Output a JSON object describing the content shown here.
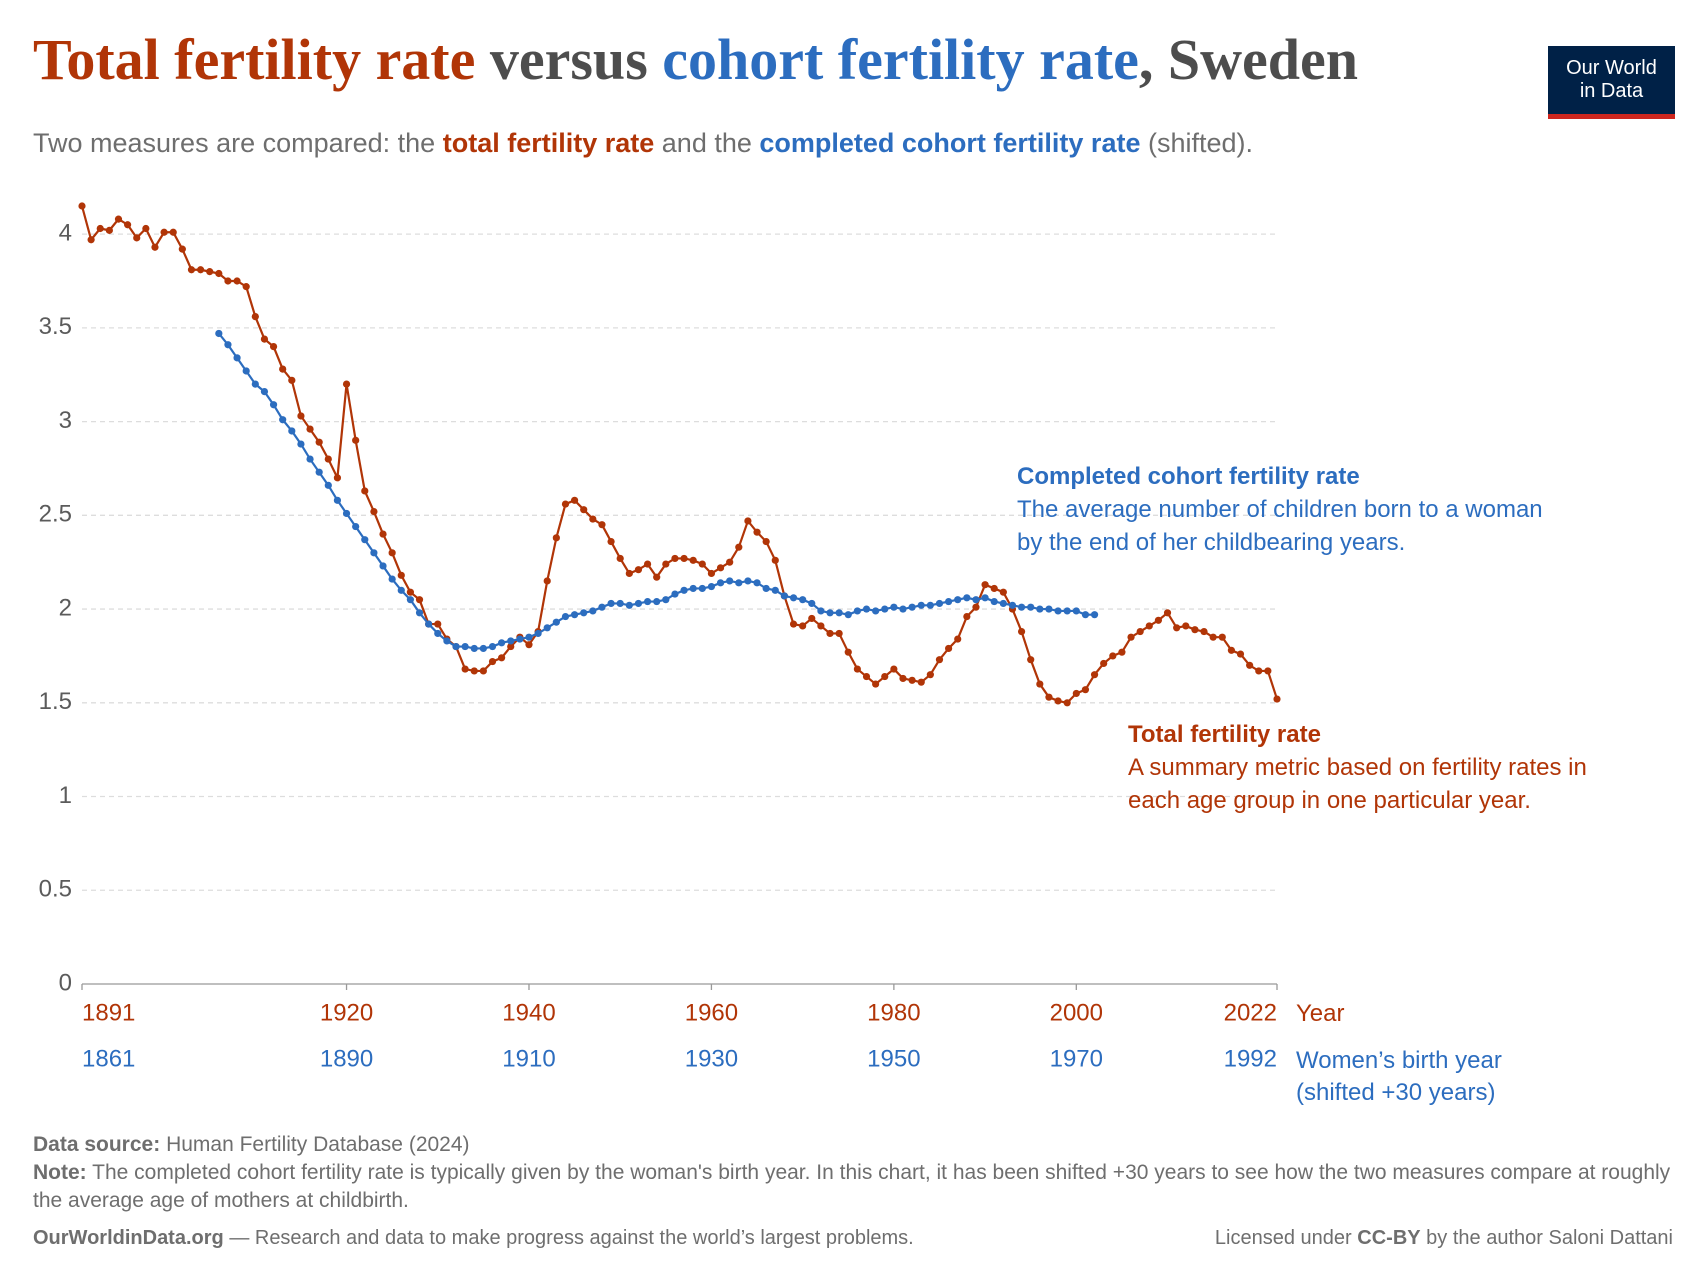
{
  "chart_data": {
    "type": "line",
    "title_parts": [
      {
        "text": "Total fertility rate",
        "color": "#b13507"
      },
      {
        "text": "versus",
        "color": "#4d4d4d"
      },
      {
        "text": "cohort fertility rate",
        "color": "#2c6dbf"
      },
      {
        "text": ", Sweden",
        "color": "#4d4d4d"
      }
    ],
    "subtitle_parts": [
      {
        "text": "Two measures are compared: the",
        "color": "#6e6e6e",
        "bold": false
      },
      {
        "text": "total fertility rate",
        "color": "#b13507",
        "bold": true
      },
      {
        "text": "and the",
        "color": "#6e6e6e",
        "bold": false
      },
      {
        "text": "completed cohort fertility rate",
        "color": "#2c6dbf",
        "bold": true
      },
      {
        "text": "(shifted).",
        "color": "#6e6e6e",
        "bold": false
      }
    ],
    "logo": [
      "Our World",
      "in Data"
    ],
    "xlabel": "Year",
    "x2label": "Women’s birth year (shifted +30 years)",
    "xlim": [
      1891,
      2022
    ],
    "xticks": [
      1891,
      1920,
      1940,
      1960,
      1980,
      2000,
      2022
    ],
    "x2lim": [
      1861,
      1992
    ],
    "x2ticks": [
      1861,
      1890,
      1910,
      1930,
      1950,
      1970,
      1992
    ],
    "ylim": [
      0,
      4.15
    ],
    "yticks": [
      0,
      0.5,
      1,
      1.5,
      2,
      2.5,
      3,
      3.5,
      4
    ],
    "grid": true,
    "series": [
      {
        "name": "Total fertility rate",
        "description": "A summary metric based on fertility rates in each age group in one particular year.",
        "color": "#b13507",
        "axis": "x",
        "x": [
          1891,
          1892,
          1893,
          1894,
          1895,
          1896,
          1897,
          1898,
          1899,
          1900,
          1901,
          1902,
          1903,
          1904,
          1905,
          1906,
          1907,
          1908,
          1909,
          1910,
          1911,
          1912,
          1913,
          1914,
          1915,
          1916,
          1917,
          1918,
          1919,
          1920,
          1921,
          1922,
          1923,
          1924,
          1925,
          1926,
          1927,
          1928,
          1929,
          1930,
          1931,
          1932,
          1933,
          1934,
          1935,
          1936,
          1937,
          1938,
          1939,
          1940,
          1941,
          1942,
          1943,
          1944,
          1945,
          1946,
          1947,
          1948,
          1949,
          1950,
          1951,
          1952,
          1953,
          1954,
          1955,
          1956,
          1957,
          1958,
          1959,
          1960,
          1961,
          1962,
          1963,
          1964,
          1965,
          1966,
          1967,
          1968,
          1969,
          1970,
          1971,
          1972,
          1973,
          1974,
          1975,
          1976,
          1977,
          1978,
          1979,
          1980,
          1981,
          1982,
          1983,
          1984,
          1985,
          1986,
          1987,
          1988,
          1989,
          1990,
          1991,
          1992,
          1993,
          1994,
          1995,
          1996,
          1997,
          1998,
          1999,
          2000,
          2001,
          2002,
          2003,
          2004,
          2005,
          2006,
          2007,
          2008,
          2009,
          2010,
          2011,
          2012,
          2013,
          2014,
          2015,
          2016,
          2017,
          2018,
          2019,
          2020,
          2021,
          2022
        ],
        "values": [
          4.15,
          3.97,
          4.03,
          4.02,
          4.08,
          4.05,
          3.98,
          4.03,
          3.93,
          4.01,
          4.01,
          3.92,
          3.81,
          3.81,
          3.8,
          3.79,
          3.75,
          3.75,
          3.72,
          3.56,
          3.44,
          3.4,
          3.28,
          3.22,
          3.03,
          2.96,
          2.89,
          2.8,
          2.7,
          3.2,
          2.9,
          2.63,
          2.52,
          2.4,
          2.3,
          2.18,
          2.09,
          2.05,
          1.92,
          1.92,
          1.84,
          1.8,
          1.68,
          1.67,
          1.67,
          1.72,
          1.74,
          1.8,
          1.85,
          1.81,
          1.88,
          2.15,
          2.38,
          2.56,
          2.58,
          2.53,
          2.48,
          2.45,
          2.36,
          2.27,
          2.19,
          2.21,
          2.24,
          2.17,
          2.24,
          2.27,
          2.27,
          2.26,
          2.24,
          2.19,
          2.22,
          2.25,
          2.33,
          2.47,
          2.41,
          2.36,
          2.26,
          2.07,
          1.92,
          1.91,
          1.95,
          1.91,
          1.87,
          1.87,
          1.77,
          1.68,
          1.64,
          1.6,
          1.64,
          1.68,
          1.63,
          1.62,
          1.61,
          1.65,
          1.73,
          1.79,
          1.84,
          1.96,
          2.01,
          2.13,
          2.11,
          2.09,
          2.0,
          1.88,
          1.73,
          1.6,
          1.53,
          1.51,
          1.5,
          1.55,
          1.57,
          1.65,
          1.71,
          1.75,
          1.77,
          1.85,
          1.88,
          1.91,
          1.94,
          1.98,
          1.9,
          1.91,
          1.89,
          1.88,
          1.85,
          1.85,
          1.78,
          1.76,
          1.7,
          1.67,
          1.67,
          1.52
        ]
      },
      {
        "name": "Completed cohort fertility rate",
        "description": "The average number of children born to a woman by the end of her childbearing years.",
        "color": "#2c6dbf",
        "axis": "x2",
        "x": [
          1876,
          1877,
          1878,
          1879,
          1880,
          1881,
          1882,
          1883,
          1884,
          1885,
          1886,
          1887,
          1888,
          1889,
          1890,
          1891,
          1892,
          1893,
          1894,
          1895,
          1896,
          1897,
          1898,
          1899,
          1900,
          1901,
          1902,
          1903,
          1904,
          1905,
          1906,
          1907,
          1908,
          1909,
          1910,
          1911,
          1912,
          1913,
          1914,
          1915,
          1916,
          1917,
          1918,
          1919,
          1920,
          1921,
          1922,
          1923,
          1924,
          1925,
          1926,
          1927,
          1928,
          1929,
          1930,
          1931,
          1932,
          1933,
          1934,
          1935,
          1936,
          1937,
          1938,
          1939,
          1940,
          1941,
          1942,
          1943,
          1944,
          1945,
          1946,
          1947,
          1948,
          1949,
          1950,
          1951,
          1952,
          1953,
          1954,
          1955,
          1956,
          1957,
          1958,
          1959,
          1960,
          1961,
          1962,
          1963,
          1964,
          1965,
          1966,
          1967,
          1968,
          1969,
          1970,
          1971,
          1972
        ],
        "values": [
          3.47,
          3.41,
          3.34,
          3.27,
          3.2,
          3.16,
          3.09,
          3.01,
          2.95,
          2.88,
          2.8,
          2.73,
          2.66,
          2.58,
          2.51,
          2.44,
          2.37,
          2.3,
          2.23,
          2.16,
          2.1,
          2.05,
          1.98,
          1.92,
          1.87,
          1.83,
          1.8,
          1.8,
          1.79,
          1.79,
          1.8,
          1.82,
          1.83,
          1.84,
          1.85,
          1.87,
          1.9,
          1.93,
          1.96,
          1.97,
          1.98,
          1.99,
          2.01,
          2.03,
          2.03,
          2.02,
          2.03,
          2.04,
          2.04,
          2.05,
          2.08,
          2.1,
          2.11,
          2.11,
          2.12,
          2.14,
          2.15,
          2.14,
          2.15,
          2.14,
          2.11,
          2.1,
          2.07,
          2.06,
          2.05,
          2.03,
          1.99,
          1.98,
          1.98,
          1.97,
          1.99,
          2.0,
          1.99,
          2.0,
          2.01,
          2.0,
          2.01,
          2.02,
          2.02,
          2.03,
          2.04,
          2.05,
          2.06,
          2.05,
          2.06,
          2.04,
          2.03,
          2.02,
          2.01,
          2.01,
          2.0,
          2.0,
          1.99,
          1.99,
          1.99,
          1.97,
          1.97
        ]
      }
    ]
  },
  "footer": {
    "source_label": "Data source:",
    "source": "Human Fertility Database (2024)",
    "note_label": "Note:",
    "note": "The completed cohort fertility rate is typically given by the woman's birth year. In this chart, it has been shifted +30 years to see how the two measures compare at roughly the average age of mothers at childbirth.",
    "site": "OurWorldinData.org",
    "tagline": "— Research and data to make progress against the world’s largest problems.",
    "license_prefix": "Licensed under",
    "license": "CC-BY",
    "license_suffix": "by the author Saloni Dattani"
  }
}
